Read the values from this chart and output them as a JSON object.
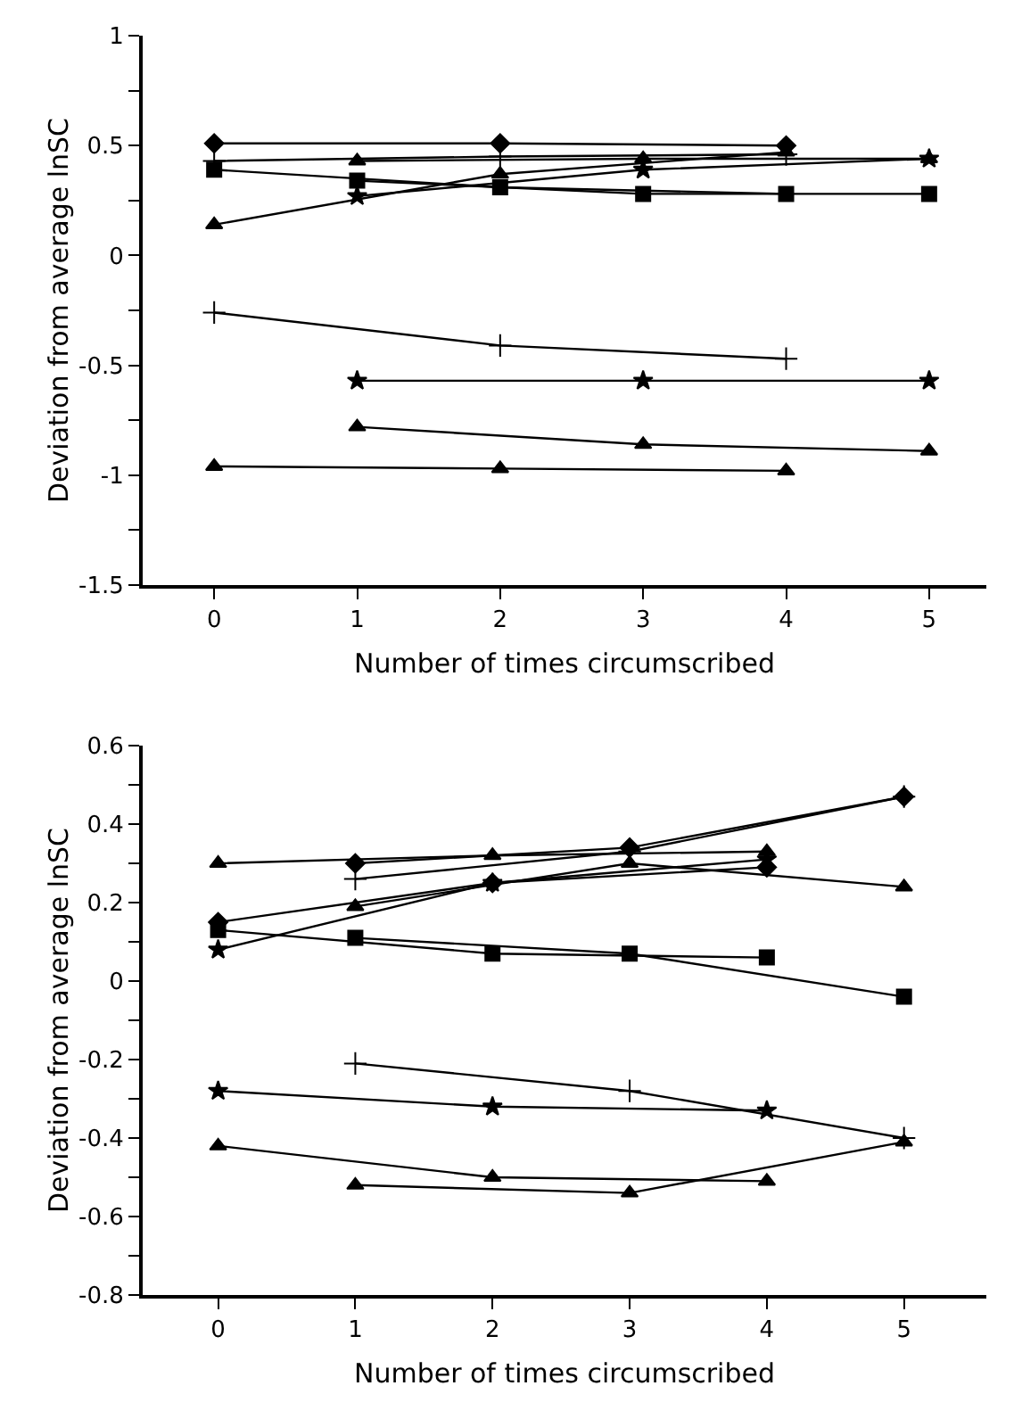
{
  "chart_data": [
    {
      "type": "line",
      "xlabel": "Number of times circumscribed",
      "ylabel": "Deviation from average lnSC",
      "xlim": [
        -0.5,
        5.4
      ],
      "xticks": [
        0,
        1,
        2,
        3,
        4,
        5
      ],
      "ylim": [
        -1.5,
        1
      ],
      "yticks": [
        -1.5,
        {
          "value": -1.25,
          "label": null
        },
        -1,
        {
          "value": -0.75,
          "label": null
        },
        -0.5,
        {
          "value": -0.25,
          "label": null
        },
        0,
        {
          "value": 0.25,
          "label": null
        },
        0.5,
        {
          "value": 0.75,
          "label": null
        },
        1
      ],
      "grid": false,
      "line_style": "solid",
      "series": [
        {
          "color": "#000000",
          "marker": "diamond",
          "x": [
            0,
            2,
            4
          ],
          "values": [
            0.51,
            0.51,
            0.5
          ]
        },
        {
          "color": "#000000",
          "marker": "square",
          "x": [
            0,
            2,
            4
          ],
          "values": [
            0.39,
            0.31,
            0.28
          ]
        },
        {
          "color": "#000000",
          "marker": "triangle",
          "x": [
            1,
            3,
            5
          ],
          "values": [
            0.43,
            0.44,
            0.44
          ]
        },
        {
          "color": "#000000",
          "marker": "square",
          "x": [
            1,
            3,
            5
          ],
          "values": [
            0.34,
            0.28,
            0.28
          ]
        },
        {
          "color": "#000000",
          "marker": "triangle",
          "x": [
            0,
            2,
            4
          ],
          "values": [
            0.14,
            0.37,
            0.47
          ]
        },
        {
          "color": "#000000",
          "marker": "star",
          "x": [
            1,
            3,
            5
          ],
          "values": [
            0.27,
            0.39,
            0.44
          ]
        },
        {
          "color": "#000000",
          "marker": "cross",
          "x": [
            0,
            2,
            4
          ],
          "values": [
            0.43,
            0.45,
            0.46
          ]
        },
        {
          "color": "#000000",
          "marker": "cross",
          "x": [
            0,
            2,
            4
          ],
          "values": [
            -0.26,
            -0.41,
            -0.47
          ]
        },
        {
          "color": "#000000",
          "marker": "star",
          "x": [
            1,
            3,
            5
          ],
          "values": [
            -0.57,
            -0.57,
            -0.57
          ]
        },
        {
          "color": "#000000",
          "marker": "triangle",
          "x": [
            1,
            3,
            5
          ],
          "values": [
            -0.78,
            -0.86,
            -0.89
          ]
        },
        {
          "color": "#000000",
          "marker": "triangle",
          "x": [
            0,
            2,
            4
          ],
          "values": [
            -0.96,
            -0.97,
            -0.98
          ]
        }
      ]
    },
    {
      "type": "line",
      "xlabel": "Number of times circumscribed",
      "ylabel": "Deviation from average lnSC",
      "xlim": [
        -0.55,
        5.6
      ],
      "xticks": [
        0,
        1,
        2,
        3,
        4,
        5
      ],
      "ylim": [
        -0.8,
        0.6
      ],
      "yticks": [
        -0.8,
        {
          "value": -0.7,
          "label": null
        },
        -0.6,
        {
          "value": -0.5,
          "label": null
        },
        -0.4,
        {
          "value": -0.3,
          "label": null
        },
        -0.2,
        {
          "value": -0.1,
          "label": null
        },
        0,
        {
          "value": 0.1,
          "label": null
        },
        0.2,
        {
          "value": 0.3,
          "label": null
        },
        0.4,
        {
          "value": 0.5,
          "label": null
        },
        0.6
      ],
      "grid": false,
      "line_style": "solid",
      "series": [
        {
          "color": "#000000",
          "marker": "triangle",
          "x": [
            0,
            2,
            4
          ],
          "values": [
            0.3,
            0.32,
            0.33
          ]
        },
        {
          "color": "#000000",
          "marker": "diamond",
          "x": [
            1,
            3,
            5
          ],
          "values": [
            0.3,
            0.34,
            0.47
          ]
        },
        {
          "color": "#000000",
          "marker": "cross",
          "x": [
            1,
            3,
            5
          ],
          "values": [
            0.26,
            0.33,
            0.47
          ]
        },
        {
          "color": "#000000",
          "marker": "triangle",
          "x": [
            1,
            3,
            5
          ],
          "values": [
            0.19,
            0.3,
            0.24
          ]
        },
        {
          "color": "#000000",
          "marker": "diamond",
          "x": [
            0,
            2,
            4
          ],
          "values": [
            0.15,
            0.25,
            0.29
          ]
        },
        {
          "color": "#000000",
          "marker": "star",
          "x": [
            0,
            2,
            4
          ],
          "values": [
            0.08,
            0.25,
            0.31
          ]
        },
        {
          "color": "#000000",
          "marker": "square",
          "x": [
            0,
            2,
            4
          ],
          "values": [
            0.13,
            0.07,
            0.06
          ]
        },
        {
          "color": "#000000",
          "marker": "square",
          "x": [
            1,
            3,
            5
          ],
          "values": [
            0.11,
            0.07,
            -0.04
          ]
        },
        {
          "color": "#000000",
          "marker": "cross",
          "x": [
            1,
            3,
            5
          ],
          "values": [
            -0.21,
            -0.28,
            -0.4
          ]
        },
        {
          "color": "#000000",
          "marker": "star",
          "x": [
            0,
            2,
            4
          ],
          "values": [
            -0.28,
            -0.32,
            -0.33
          ]
        },
        {
          "color": "#000000",
          "marker": "triangle",
          "x": [
            0,
            2,
            4
          ],
          "values": [
            -0.42,
            -0.5,
            -0.51
          ]
        },
        {
          "color": "#000000",
          "marker": "triangle",
          "x": [
            1,
            3,
            5
          ],
          "values": [
            -0.52,
            -0.54,
            -0.41
          ]
        }
      ]
    }
  ]
}
